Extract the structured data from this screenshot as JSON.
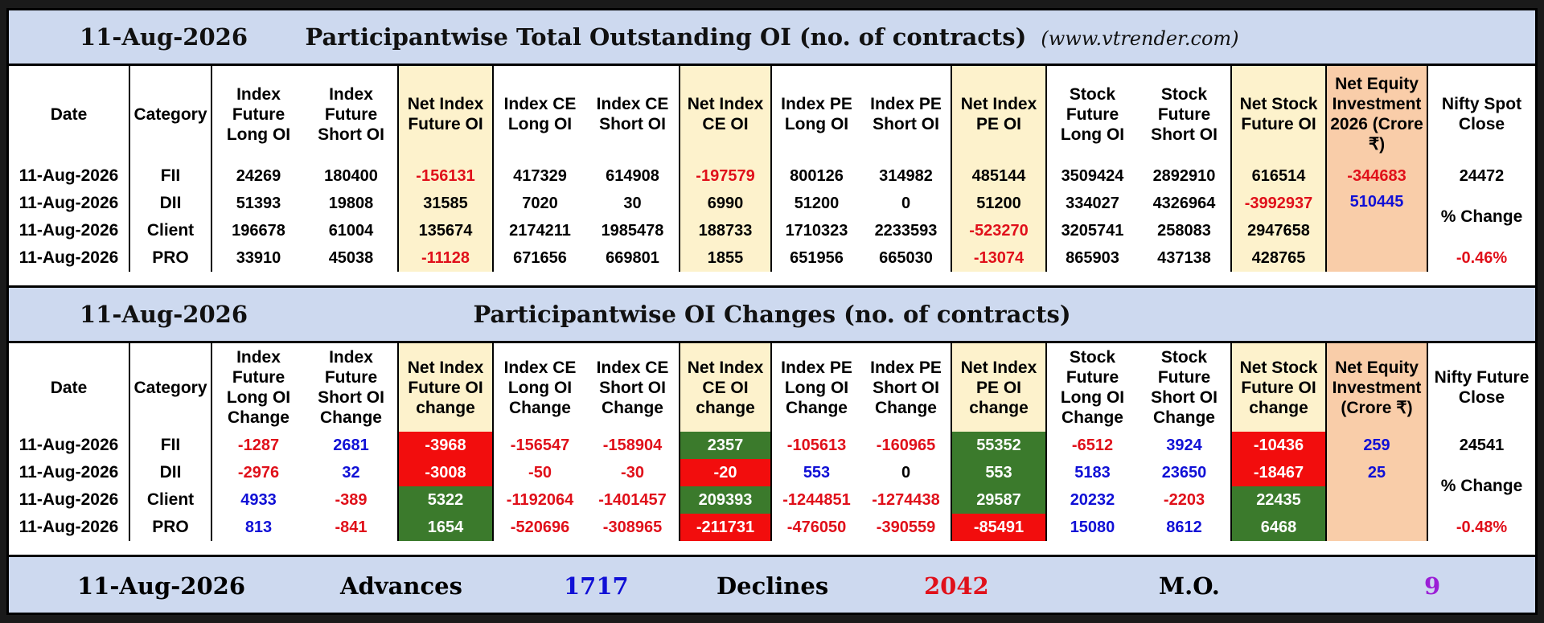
{
  "oi": {
    "date": "11-Aug-2026",
    "title": "Participantwise Total Outstanding OI (no. of contracts)",
    "site": "(www.vtrender.com)",
    "headers": [
      "Date",
      "Category",
      "Index Future Long OI",
      "Index Future Short OI",
      "Net Index Future OI",
      "Index CE Long OI",
      "Index CE Short OI",
      "Net Index CE OI",
      "Index PE Long OI",
      "Index PE Short OI",
      "Net Index PE OI",
      "Stock Future Long OI",
      "Stock Future Short OI",
      "Net Stock Future OI",
      "Net Equity Investment 2026 (Crore ₹)",
      "Nifty Spot Close"
    ],
    "rows": [
      {
        "date": "11-Aug-2026",
        "cat": "FII",
        "v": [
          "24269",
          "180400",
          "-156131",
          "417329",
          "614908",
          "-197579",
          "800126",
          "314982",
          "485144",
          "3509424",
          "2892910",
          "616514"
        ],
        "eq": "-344683"
      },
      {
        "date": "11-Aug-2026",
        "cat": "DII",
        "v": [
          "51393",
          "19808",
          "31585",
          "7020",
          "30",
          "6990",
          "51200",
          "0",
          "51200",
          "334027",
          "4326964",
          "-3992937"
        ],
        "eq": "510445"
      },
      {
        "date": "11-Aug-2026",
        "cat": "Client",
        "v": [
          "196678",
          "61004",
          "135674",
          "2174211",
          "1985478",
          "188733",
          "1710323",
          "2233593",
          "-523270",
          "3205741",
          "258083",
          "2947658"
        ],
        "eq": ""
      },
      {
        "date": "11-Aug-2026",
        "cat": "PRO",
        "v": [
          "33910",
          "45038",
          "-11128",
          "671656",
          "669801",
          "1855",
          "651956",
          "665030",
          "-13074",
          "865903",
          "437138",
          "428765"
        ],
        "eq": ""
      }
    ],
    "nifty_close": "24472",
    "pct_label": "% Change",
    "pct_value": "-0.46%"
  },
  "chg": {
    "date": "11-Aug-2026",
    "title": "Participantwise OI Changes (no. of contracts)",
    "headers": [
      "Date",
      "Category",
      "Index Future Long OI Change",
      "Index Future Short OI Change",
      "Net Index Future OI change",
      "Index CE Long OI Change",
      "Index CE Short OI Change",
      "Net Index CE OI change",
      "Index PE Long OI Change",
      "Index PE Short OI Change",
      "Net Index PE OI change",
      "Stock Future Long OI Change",
      "Stock Future Short OI Change",
      "Net Stock Future OI change",
      "Net Equity Investment (Crore ₹)",
      "Nifty Future Close"
    ],
    "rows": [
      {
        "date": "11-Aug-2026",
        "cat": "FII",
        "v": [
          "-1287",
          "2681",
          "-3968",
          "-156547",
          "-158904",
          "2357",
          "-105613",
          "-160965",
          "55352",
          "-6512",
          "3924",
          "-10436"
        ],
        "eq": "259"
      },
      {
        "date": "11-Aug-2026",
        "cat": "DII",
        "v": [
          "-2976",
          "32",
          "-3008",
          "-50",
          "-30",
          "-20",
          "553",
          "0",
          "553",
          "5183",
          "23650",
          "-18467"
        ],
        "eq": "25"
      },
      {
        "date": "11-Aug-2026",
        "cat": "Client",
        "v": [
          "4933",
          "-389",
          "5322",
          "-1192064",
          "-1401457",
          "209393",
          "-1244851",
          "-1274438",
          "29587",
          "20232",
          "-2203",
          "22435"
        ],
        "eq": ""
      },
      {
        "date": "11-Aug-2026",
        "cat": "PRO",
        "v": [
          "813",
          "-841",
          "1654",
          "-520696",
          "-308965",
          "-211731",
          "-476050",
          "-390559",
          "-85491",
          "15080",
          "8612",
          "6468"
        ],
        "eq": ""
      }
    ],
    "nifty_close": "24541",
    "pct_label": "% Change",
    "pct_value": "-0.48%"
  },
  "footer": {
    "date": "11-Aug-2026",
    "adv_label": "Advances",
    "adv_value": "1717",
    "dec_label": "Declines",
    "dec_value": "2042",
    "mo_label": "M.O.",
    "mo_value": "9"
  },
  "colors": {
    "positive_text": "#1010d6",
    "negative_text": "#e0101a",
    "positive_fill": "#3b7a2c",
    "negative_fill": "#f20d0d",
    "mo": "#9b1fd6"
  }
}
